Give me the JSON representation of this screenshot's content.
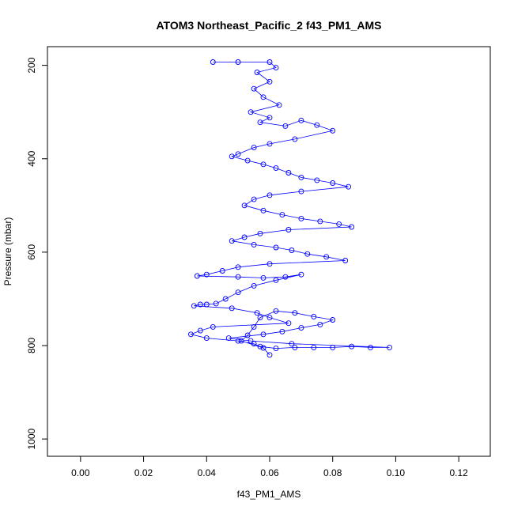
{
  "chart_data": {
    "type": "line",
    "title": "ATOM3 Northeast_Pacific_2 f43_PM1_AMS",
    "xlabel": "f43_PM1_AMS",
    "ylabel": "Pressure (mbar)",
    "xlim": [
      -0.0105,
      0.13
    ],
    "ylim": [
      1037,
      160
    ],
    "xticks": [
      0.0,
      0.02,
      0.04,
      0.06,
      0.08,
      0.1,
      0.12
    ],
    "xtick_labels": [
      "0.00",
      "0.02",
      "0.04",
      "0.06",
      "0.08",
      "0.10",
      "0.12"
    ],
    "yticks": [
      200,
      400,
      600,
      800,
      1000
    ],
    "ytick_labels": [
      "200",
      "400",
      "600",
      "800",
      "1000"
    ],
    "grid": false,
    "series_color": "#0000ff",
    "series": [
      {
        "name": "f43_PM1_AMS",
        "x": [
          0.042,
          0.05,
          0.06,
          0.062,
          0.056,
          0.06,
          0.055,
          0.058,
          0.063,
          0.054,
          0.06,
          0.057,
          0.065,
          0.07,
          0.075,
          0.08,
          0.068,
          0.06,
          0.055,
          0.05,
          0.048,
          0.053,
          0.058,
          0.062,
          0.066,
          0.07,
          0.075,
          0.08,
          0.085,
          0.07,
          0.06,
          0.055,
          0.052,
          0.058,
          0.064,
          0.07,
          0.076,
          0.082,
          0.086,
          0.066,
          0.057,
          0.052,
          0.048,
          0.055,
          0.062,
          0.067,
          0.072,
          0.078,
          0.084,
          0.06,
          0.05,
          0.045,
          0.04,
          0.037,
          0.05,
          0.058,
          0.065,
          0.07,
          0.062,
          0.055,
          0.05,
          0.046,
          0.043,
          0.04,
          0.038,
          0.036,
          0.048,
          0.056,
          0.06,
          0.066,
          0.042,
          0.038,
          0.035,
          0.04,
          0.05,
          0.055,
          0.057,
          0.062,
          0.068,
          0.074,
          0.08,
          0.086,
          0.092,
          0.098,
          0.067,
          0.054,
          0.047,
          0.058,
          0.064,
          0.07,
          0.076,
          0.08,
          0.074,
          0.068,
          0.062,
          0.057,
          0.055,
          0.053,
          0.051,
          0.058,
          0.06
        ],
        "y": [
          193,
          193,
          193,
          205,
          215,
          235,
          250,
          268,
          285,
          300,
          312,
          322,
          330,
          318,
          328,
          340,
          358,
          368,
          376,
          390,
          395,
          404,
          412,
          420,
          430,
          440,
          446,
          452,
          460,
          470,
          478,
          487,
          500,
          511,
          520,
          528,
          534,
          540,
          546,
          552,
          560,
          568,
          576,
          584,
          590,
          596,
          604,
          610,
          618,
          625,
          632,
          640,
          648,
          651,
          653,
          655,
          653,
          648,
          660,
          672,
          686,
          700,
          710,
          712,
          712,
          715,
          720,
          730,
          740,
          752,
          760,
          768,
          776,
          784,
          790,
          796,
          802,
          806,
          804,
          804,
          804,
          802,
          804,
          804,
          796,
          790,
          784,
          776,
          770,
          762,
          755,
          745,
          738,
          730,
          726,
          740,
          760,
          778,
          790,
          805,
          820
        ]
      }
    ]
  }
}
